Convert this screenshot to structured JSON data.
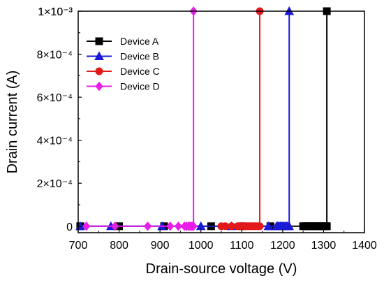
{
  "chart_data": {
    "type": "line",
    "xlabel": "Drain-source voltage (V)",
    "ylabel": "Drain current (A)",
    "xlim": [
      700,
      1400
    ],
    "ylim": [
      -3e-05,
      0.001
    ],
    "x_ticks": [
      700,
      800,
      900,
      1000,
      1100,
      1200,
      1300,
      1400
    ],
    "y_ticks": [
      {
        "value": 0,
        "label": "0"
      },
      {
        "value": 0.0002,
        "label": "2×10⁻⁴"
      },
      {
        "value": 0.0004,
        "label": "4×10⁻⁴"
      },
      {
        "value": 0.0006,
        "label": "6×10⁻⁴"
      },
      {
        "value": 0.0008,
        "label": "8×10⁻⁴"
      },
      {
        "value": 0.001,
        "label": "1×10⁻³"
      }
    ],
    "y_top_label": "1×10⁻³",
    "grid": false,
    "legend_position": "top-left",
    "series": [
      {
        "name": "Device A",
        "color": "#000000",
        "marker": "square",
        "x": [
          705,
          800,
          910,
          1025,
          1100,
          1170,
          1250,
          1255,
          1260,
          1265,
          1270,
          1275,
          1280,
          1285,
          1290,
          1295,
          1300,
          1305,
          1308,
          1308
        ],
        "y": [
          0,
          0,
          0,
          0,
          0,
          0,
          0,
          0,
          0,
          0,
          0,
          0,
          0,
          0,
          0,
          0,
          0,
          0,
          0,
          0.001
        ]
      },
      {
        "name": "Device B",
        "color": "#1a1ad6",
        "marker": "triangle",
        "x": [
          705,
          780,
          905,
          1000,
          1075,
          1165,
          1185,
          1188,
          1191,
          1194,
          1197,
          1200,
          1203,
          1206,
          1209,
          1212,
          1216,
          1216
        ],
        "y": [
          0,
          0,
          0,
          0,
          0,
          0,
          0,
          0,
          0,
          0,
          0,
          0,
          0,
          0,
          0,
          0,
          0,
          0.001
        ]
      },
      {
        "name": "Device C",
        "color": "#e31a1a",
        "marker": "circle",
        "x": [
          1050,
          1060,
          1075,
          1090,
          1095,
          1100,
          1105,
          1108,
          1111,
          1114,
          1117,
          1120,
          1123,
          1126,
          1129,
          1132,
          1135,
          1138,
          1141,
          1144,
          1144
        ],
        "y": [
          0,
          0,
          0,
          0,
          0,
          0,
          0,
          0,
          0,
          0,
          0,
          0,
          0,
          0,
          0,
          0,
          0,
          0,
          0,
          0,
          0.001
        ]
      },
      {
        "name": "Device D",
        "color": "#e81ee8",
        "marker": "diamond",
        "x": [
          720,
          790,
          870,
          925,
          945,
          960,
          965,
          970,
          973,
          976,
          979,
          982,
          982
        ],
        "y": [
          0,
          0,
          0,
          0,
          0,
          0,
          0,
          0,
          0,
          0,
          0,
          0,
          0.001
        ]
      }
    ]
  }
}
